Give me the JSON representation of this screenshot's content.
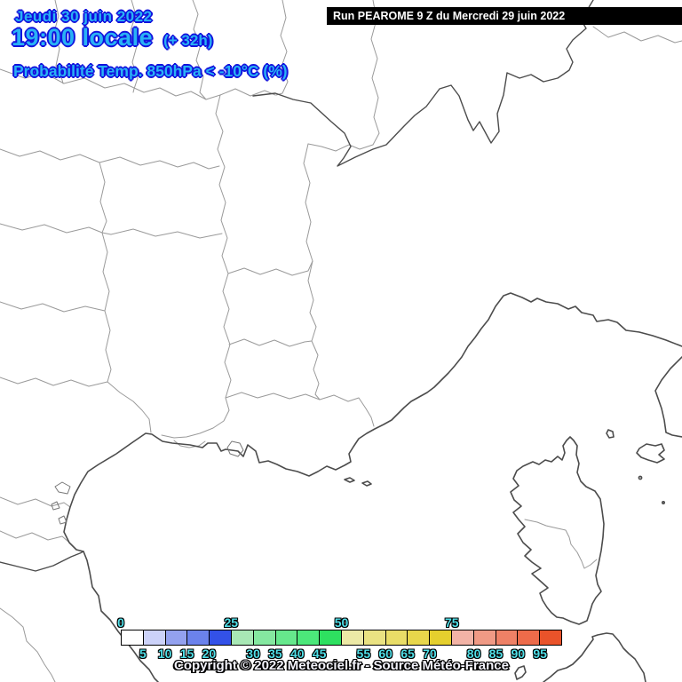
{
  "header": {
    "date_line": "Jeudi 30 juin 2022",
    "time_line": "19:00 locale",
    "time_offset": "(+ 32h)",
    "param_line": "Probabilité Temp. 850hPa < -10°C (%)",
    "run_line": "Run PEAROME 9 Z du Mercredi 29 juin 2022"
  },
  "footer": {
    "copyright": "Copyright © 2022 Meteociel.fr - Source Météo-France"
  },
  "legend": {
    "unit": "%",
    "ticks_top": [
      0,
      25,
      50,
      75
    ],
    "ticks_bottom": [
      5,
      10,
      15,
      20,
      30,
      35,
      40,
      45,
      55,
      60,
      65,
      70,
      80,
      85,
      90,
      95
    ],
    "cells": [
      {
        "from": 0,
        "color": "#ffffff"
      },
      {
        "from": 5,
        "color": "#ccd2f9"
      },
      {
        "from": 10,
        "color": "#93a1ef"
      },
      {
        "from": 15,
        "color": "#6b82ec"
      },
      {
        "from": 20,
        "color": "#3351e8"
      },
      {
        "from": 25,
        "color": "#a8e8b5"
      },
      {
        "from": 30,
        "color": "#85e8a0"
      },
      {
        "from": 35,
        "color": "#66e88c"
      },
      {
        "from": 40,
        "color": "#4ce87a"
      },
      {
        "from": 45,
        "color": "#2ee060"
      },
      {
        "from": 50,
        "color": "#ece9a6"
      },
      {
        "from": 55,
        "color": "#eae282"
      },
      {
        "from": 60,
        "color": "#e9dd67"
      },
      {
        "from": 65,
        "color": "#e8d74b"
      },
      {
        "from": 70,
        "color": "#e5cf2e"
      },
      {
        "from": 75,
        "color": "#f2b3a6"
      },
      {
        "from": 80,
        "color": "#f09a85"
      },
      {
        "from": 85,
        "color": "#ef8166"
      },
      {
        "from": 90,
        "color": "#ed6b4a"
      },
      {
        "from": 95,
        "color": "#e9532a"
      }
    ]
  },
  "colors": {
    "title_fill": "#29b2f5",
    "title_outline": "#1212dd",
    "tick_fill": "#50dfe8",
    "run_bar_bg": "#000000",
    "run_bar_text": "#ffffff",
    "dept_border": "#9a9a9a",
    "coastline": "#4c4c4c"
  }
}
